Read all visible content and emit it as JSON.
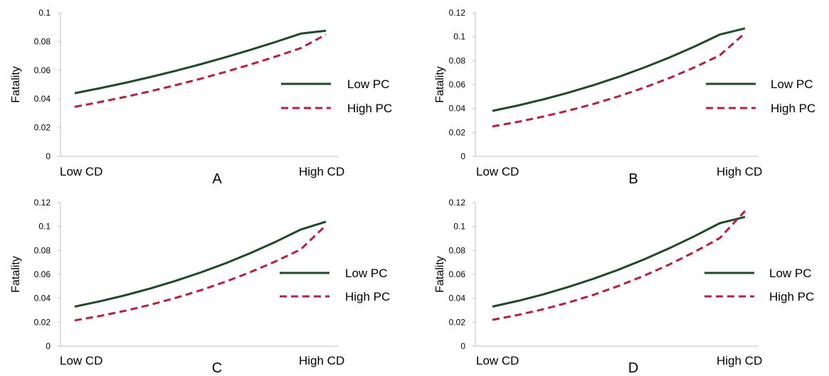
{
  "chart_data": [
    {
      "type": "line",
      "panel_label": "A",
      "ylabel": "Fatality",
      "categories": [
        "Low CD",
        "High CD"
      ],
      "yticks": [
        "0",
        "0.02",
        "0.04",
        "0.06",
        "0.08",
        "0.1"
      ],
      "ylim": [
        0,
        0.1
      ],
      "x": [
        0,
        0.1,
        0.2,
        0.3,
        0.4,
        0.5,
        0.6,
        0.7,
        0.8,
        0.9,
        1
      ],
      "series": [
        {
          "name": "Low PC",
          "color": "#1f4a2a",
          "dash": "solid",
          "values": [
            0.044,
            0.0475,
            0.0512,
            0.0552,
            0.0595,
            0.0641,
            0.069,
            0.0742,
            0.0797,
            0.0855,
            0.0875
          ]
        },
        {
          "name": "High PC",
          "color": "#b5213d",
          "dash": "dashed",
          "values": [
            0.0345,
            0.0378,
            0.0414,
            0.0453,
            0.0495,
            0.054,
            0.0588,
            0.064,
            0.0695,
            0.0754,
            0.0848
          ]
        }
      ],
      "legend": "right"
    },
    {
      "type": "line",
      "panel_label": "B",
      "ylabel": "Fatality",
      "categories": [
        "Low CD",
        "High CD"
      ],
      "yticks": [
        "0",
        "0.02",
        "0.04",
        "0.06",
        "0.08",
        "0.1",
        "0.12"
      ],
      "ylim": [
        0,
        0.12
      ],
      "x": [
        0,
        0.1,
        0.2,
        0.3,
        0.4,
        0.5,
        0.6,
        0.7,
        0.8,
        0.9,
        1
      ],
      "series": [
        {
          "name": "Low PC",
          "color": "#1f4a2a",
          "dash": "solid",
          "values": [
            0.038,
            0.0425,
            0.0475,
            0.0532,
            0.0595,
            0.0665,
            0.0742,
            0.0826,
            0.0918,
            0.1018,
            0.107
          ]
        },
        {
          "name": "High PC",
          "color": "#b5213d",
          "dash": "dashed",
          "values": [
            0.025,
            0.0288,
            0.0332,
            0.0382,
            0.0438,
            0.0502,
            0.0574,
            0.0654,
            0.0744,
            0.0844,
            0.103
          ]
        }
      ],
      "legend": "right"
    },
    {
      "type": "line",
      "panel_label": "C",
      "ylabel": "Fatality",
      "categories": [
        "Low CD",
        "High CD"
      ],
      "yticks": [
        "0",
        "0.02",
        "0.04",
        "0.06",
        "0.08",
        "0.1",
        "0.12"
      ],
      "ylim": [
        0,
        0.12
      ],
      "x": [
        0,
        0.1,
        0.2,
        0.3,
        0.4,
        0.5,
        0.6,
        0.7,
        0.8,
        0.9,
        1
      ],
      "series": [
        {
          "name": "Low PC",
          "color": "#1f4a2a",
          "dash": "solid",
          "values": [
            0.033,
            0.0375,
            0.0425,
            0.0482,
            0.0545,
            0.0615,
            0.0692,
            0.0778,
            0.0872,
            0.0975,
            0.104
          ]
        },
        {
          "name": "High PC",
          "color": "#b5213d",
          "dash": "dashed",
          "values": [
            0.0215,
            0.0252,
            0.0295,
            0.0345,
            0.0402,
            0.0466,
            0.0538,
            0.0619,
            0.0709,
            0.0809,
            0.101
          ]
        }
      ],
      "legend": "right"
    },
    {
      "type": "line",
      "panel_label": "D",
      "ylabel": "Fatality",
      "categories": [
        "Low CD",
        "High CD"
      ],
      "yticks": [
        "0",
        "0.02",
        "0.04",
        "0.06",
        "0.08",
        "0.1",
        "0.12"
      ],
      "ylim": [
        0,
        0.12
      ],
      "x": [
        0,
        0.1,
        0.2,
        0.3,
        0.4,
        0.5,
        0.6,
        0.7,
        0.8,
        0.9,
        1
      ],
      "series": [
        {
          "name": "Low PC",
          "color": "#1f4a2a",
          "dash": "solid",
          "values": [
            0.033,
            0.0378,
            0.0432,
            0.0494,
            0.0563,
            0.064,
            0.0725,
            0.0818,
            0.0919,
            0.1028,
            0.108
          ]
        },
        {
          "name": "High PC",
          "color": "#b5213d",
          "dash": "dashed",
          "values": [
            0.022,
            0.026,
            0.0308,
            0.0364,
            0.0429,
            0.0504,
            0.0588,
            0.0682,
            0.0787,
            0.0903,
            0.113
          ]
        }
      ],
      "legend": "right"
    }
  ]
}
